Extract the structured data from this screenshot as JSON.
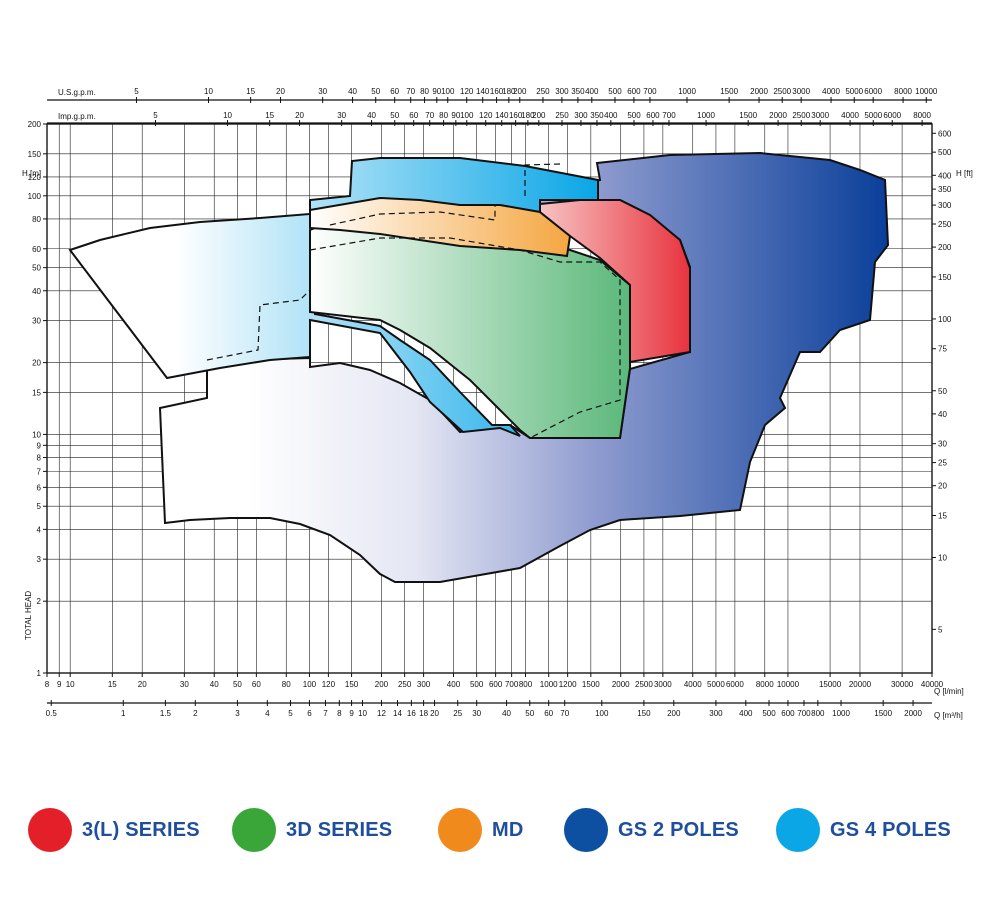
{
  "chart_data": {
    "type": "area",
    "x_axis_bottom_primary": {
      "label": "Q [l/min]",
      "scale": "log",
      "ticks": [
        "8",
        "9",
        "10",
        "15",
        "20",
        "30",
        "40",
        "50",
        "60",
        "80",
        "100",
        "120",
        "150",
        "200",
        "250",
        "300",
        "400",
        "500",
        "600",
        "700",
        "800",
        "1000",
        "1200",
        "1500",
        "2000",
        "2500",
        "3000",
        "4000",
        "5000",
        "6000",
        "8000",
        "10000",
        "15000",
        "20000",
        "30000",
        "40000"
      ]
    },
    "x_axis_bottom_secondary": {
      "label": "Q [m³/h]",
      "ticks": [
        "0.5",
        "1",
        "1.5",
        "2",
        "3",
        "4",
        "5",
        "6",
        "7",
        "8",
        "9",
        "10",
        "12",
        "14",
        "16",
        "18",
        "20",
        "25",
        "30",
        "40",
        "50",
        "60",
        "70",
        "100",
        "150",
        "200",
        "300",
        "400",
        "500",
        "600",
        "700",
        "800",
        "1000",
        "1500",
        "2000"
      ]
    },
    "x_axis_top_us": {
      "label": "U.S.g.p.m.",
      "ticks": [
        "5",
        "10",
        "15",
        "20",
        "30",
        "40",
        "50",
        "60",
        "70",
        "80",
        "90",
        "100",
        "120",
        "140",
        "160",
        "180",
        "200",
        "250",
        "300",
        "350",
        "400",
        "500",
        "600",
        "700",
        "1000",
        "1500",
        "2000",
        "2500",
        "3000",
        "4000",
        "5000",
        "6000",
        "8000",
        "10000"
      ]
    },
    "x_axis_top_imp": {
      "label": "Imp.g.p.m.",
      "ticks": [
        "5",
        "10",
        "15",
        "20",
        "30",
        "40",
        "50",
        "60",
        "70",
        "80",
        "90",
        "100",
        "120",
        "140",
        "160",
        "180",
        "200",
        "250",
        "300",
        "350",
        "400",
        "500",
        "600",
        "700",
        "1000",
        "1500",
        "2000",
        "2500",
        "3000",
        "4000",
        "5000",
        "6000",
        "8000"
      ]
    },
    "y_axis_left": {
      "label": "H [m]",
      "title": "TOTAL HEAD",
      "scale": "log",
      "ylim": [
        1,
        200
      ],
      "ticks": [
        "1",
        "2",
        "3",
        "4",
        "5",
        "6",
        "7",
        "8",
        "9",
        "10",
        "15",
        "20",
        "30",
        "40",
        "50",
        "60",
        "80",
        "100",
        "120",
        "150",
        "200"
      ]
    },
    "y_axis_right": {
      "label": "H [ft]",
      "ticks": [
        "5",
        "10",
        "15",
        "20",
        "25",
        "30",
        "40",
        "50",
        "75",
        "100",
        "150",
        "200",
        "250",
        "300",
        "350",
        "400",
        "500",
        "600"
      ]
    },
    "grid": true,
    "legend_position": "bottom",
    "series": [
      {
        "name": "3(L) SERIES",
        "color": "#e3202a"
      },
      {
        "name": "3D SERIES",
        "color": "#3aa63a"
      },
      {
        "name": "MD",
        "color": "#f08a1c"
      },
      {
        "name": "GS 2 POLES",
        "color": "#0d4fa0"
      },
      {
        "name": "GS 4 POLES",
        "color": "#0aa6e6"
      }
    ]
  }
}
